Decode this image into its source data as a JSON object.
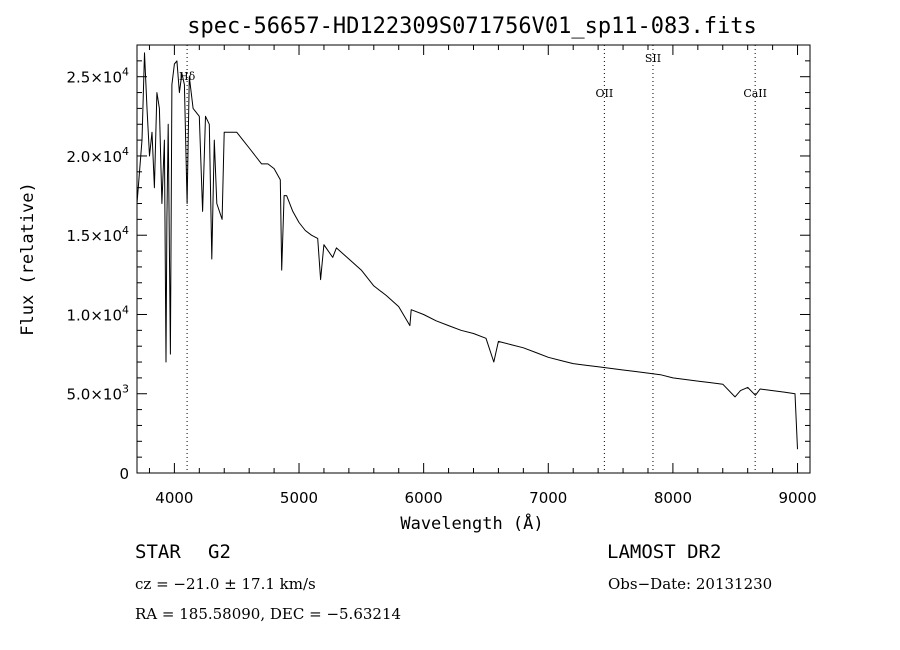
{
  "chart_data": {
    "type": "line",
    "title": "spec-56657-HD122309S071756V01_sp11-083.fits",
    "xlabel": "Wavelength (Å)",
    "ylabel": "Flux (relative)",
    "xlim": [
      3700,
      9100
    ],
    "ylim": [
      0,
      27000
    ],
    "x_ticks": [
      4000,
      5000,
      6000,
      7000,
      8000,
      9000
    ],
    "x_tick_labels": [
      "4000",
      "5000",
      "6000",
      "7000",
      "8000",
      "9000"
    ],
    "y_ticks": [
      0,
      5000,
      10000,
      15000,
      20000,
      25000
    ],
    "y_tick_labels": [
      {
        "mant": "0",
        "exp": ""
      },
      {
        "mant": "5.0×10",
        "exp": "3"
      },
      {
        "mant": "1.0×10",
        "exp": "4"
      },
      {
        "mant": "1.5×10",
        "exp": "4"
      },
      {
        "mant": "2.0×10",
        "exp": "4"
      },
      {
        "mant": "2.5×10",
        "exp": "4"
      }
    ],
    "grid": false,
    "lines": [
      {
        "label": "Hδ",
        "wavelength": 4102
      },
      {
        "label": "OII",
        "wavelength": 7450
      },
      {
        "label": "SII",
        "wavelength": 7840
      },
      {
        "label": "CaII",
        "wavelength": 8660
      }
    ],
    "series": [
      {
        "x": [
          3700,
          3720,
          3740,
          3760,
          3780,
          3800,
          3820,
          3840,
          3860,
          3880,
          3900,
          3920,
          3933,
          3940,
          3950,
          3968,
          3980,
          4000,
          4020,
          4040,
          4060,
          4080,
          4102,
          4120,
          4150,
          4200,
          4226,
          4250,
          4280,
          4300,
          4320,
          4340,
          4383,
          4400,
          4450,
          4500,
          4550,
          4600,
          4650,
          4700,
          4750,
          4800,
          4850,
          4861,
          4880,
          4900,
          4950,
          5000,
          5050,
          5100,
          5150,
          5173,
          5200,
          5270,
          5300,
          5400,
          5500,
          5600,
          5700,
          5800,
          5890,
          5900,
          6000,
          6100,
          6200,
          6300,
          6400,
          6500,
          6563,
          6600,
          6700,
          6800,
          6900,
          7000,
          7100,
          7200,
          7300,
          7400,
          7500,
          7600,
          7700,
          7800,
          7900,
          8000,
          8100,
          8200,
          8300,
          8400,
          8498,
          8542,
          8600,
          8662,
          8700,
          8800,
          8900,
          8980,
          9000
        ],
        "y": [
          17000,
          19000,
          21000,
          26500,
          23000,
          20000,
          21500,
          18000,
          24000,
          23000,
          17000,
          21000,
          7000,
          16000,
          22000,
          7500,
          24500,
          25800,
          26000,
          24000,
          25200,
          24500,
          17000,
          25000,
          23000,
          22500,
          16500,
          22500,
          22000,
          13500,
          21000,
          17000,
          16000,
          21500,
          21500,
          21500,
          21000,
          20500,
          20000,
          19500,
          19500,
          19200,
          18500,
          12800,
          17500,
          17500,
          16500,
          15800,
          15300,
          15000,
          14800,
          12200,
          14400,
          13600,
          14200,
          13500,
          12800,
          11800,
          11200,
          10500,
          9300,
          10300,
          10000,
          9600,
          9300,
          9000,
          8800,
          8500,
          7000,
          8300,
          8100,
          7900,
          7600,
          7300,
          7100,
          6900,
          6800,
          6700,
          6600,
          6500,
          6400,
          6300,
          6200,
          6000,
          5900,
          5800,
          5700,
          5600,
          4800,
          5200,
          5400,
          4900,
          5300,
          5200,
          5100,
          5000,
          1500
        ]
      }
    ]
  },
  "info": {
    "object_class": "STAR",
    "subclass": "G2",
    "survey": "LAMOST DR2",
    "cz": "cz = −21.0 ± 17.1 km/s",
    "obs_date": "Obs−Date: 20131230",
    "coords": "RA = 185.58090, DEC =  −5.63214"
  }
}
